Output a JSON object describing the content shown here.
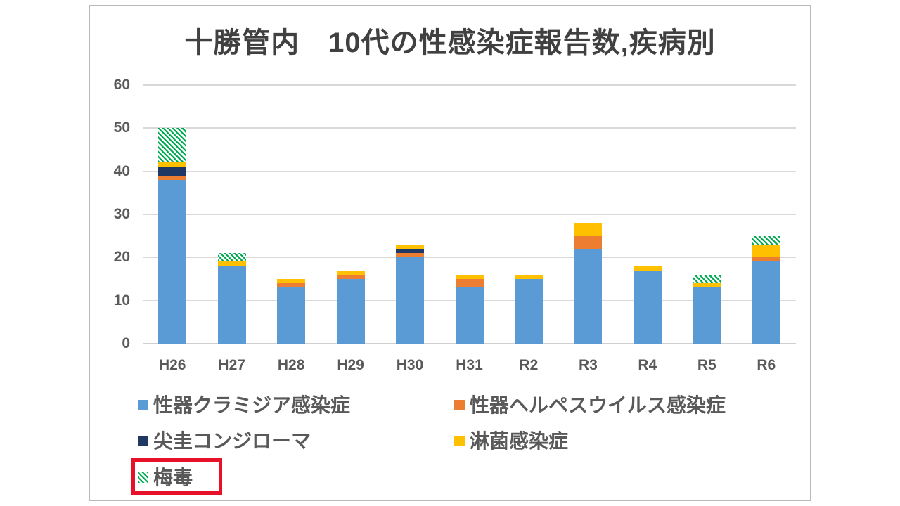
{
  "window": {
    "background": "#ffffff",
    "slide_border_color": "#b9b9b9"
  },
  "chart_data": {
    "type": "bar",
    "stacked": true,
    "title": "十勝管内　10代の性感染症報告数,疾病別",
    "categories": [
      "H26",
      "H27",
      "H28",
      "H29",
      "H30",
      "H31",
      "R2",
      "R3",
      "R4",
      "R5",
      "R6"
    ],
    "series": [
      {
        "name": "性器クラミジア感染症",
        "color": "#5b9bd5",
        "pattern": "solid",
        "values": [
          38,
          18,
          13,
          15,
          20,
          13,
          15,
          22,
          17,
          13,
          19
        ]
      },
      {
        "name": "性器ヘルペスウイルス感染症",
        "color": "#ed7d31",
        "pattern": "solid",
        "values": [
          1,
          0,
          1,
          1,
          1,
          2,
          0,
          3,
          0,
          0,
          1
        ]
      },
      {
        "name": "尖圭コンジローマ",
        "color": "#1f3864",
        "pattern": "solid",
        "values": [
          2,
          0,
          0,
          0,
          1,
          0,
          0,
          0,
          0,
          0,
          0
        ]
      },
      {
        "name": "淋菌感染症",
        "color": "#ffc000",
        "pattern": "solid",
        "values": [
          1,
          1,
          1,
          1,
          1,
          1,
          1,
          3,
          1,
          1,
          3
        ]
      },
      {
        "name": "梅毒",
        "color": "#00ab50",
        "pattern": "diagonal-hatch-on-white",
        "values": [
          8,
          2,
          0,
          0,
          0,
          0,
          0,
          0,
          0,
          2,
          2
        ]
      }
    ],
    "stack_totals": [
      50,
      21,
      15,
      17,
      23,
      16,
      16,
      28,
      18,
      16,
      25
    ],
    "y_axis": {
      "min": 0,
      "max": 60,
      "step": 10,
      "tick_labels": [
        "0",
        "10",
        "20",
        "30",
        "40",
        "50",
        "60"
      ]
    },
    "x_axis": {
      "tick_labels": [
        "H26",
        "H27",
        "H28",
        "H29",
        "H30",
        "H31",
        "R2",
        "R3",
        "R4",
        "R5",
        "R6"
      ]
    },
    "gridlines": true,
    "grid_color": "#d9d9d9",
    "text_color": "#595959",
    "title_color": "#404040",
    "legend": {
      "position": "bottom",
      "columns": 2,
      "items": [
        {
          "label": "性器クラミジア感染症",
          "series": 0,
          "row": 0,
          "col": 0,
          "highlighted": false
        },
        {
          "label": "性器ヘルペスウイルス感染症",
          "series": 1,
          "row": 0,
          "col": 1,
          "highlighted": false
        },
        {
          "label": "尖圭コンジローマ",
          "series": 2,
          "row": 1,
          "col": 0,
          "highlighted": false
        },
        {
          "label": "淋菌感染症",
          "series": 3,
          "row": 1,
          "col": 1,
          "highlighted": false
        },
        {
          "label": "梅毒",
          "series": 4,
          "row": 2,
          "col": 0,
          "highlighted": true
        }
      ],
      "highlight_box_color": "#e8112a"
    }
  }
}
